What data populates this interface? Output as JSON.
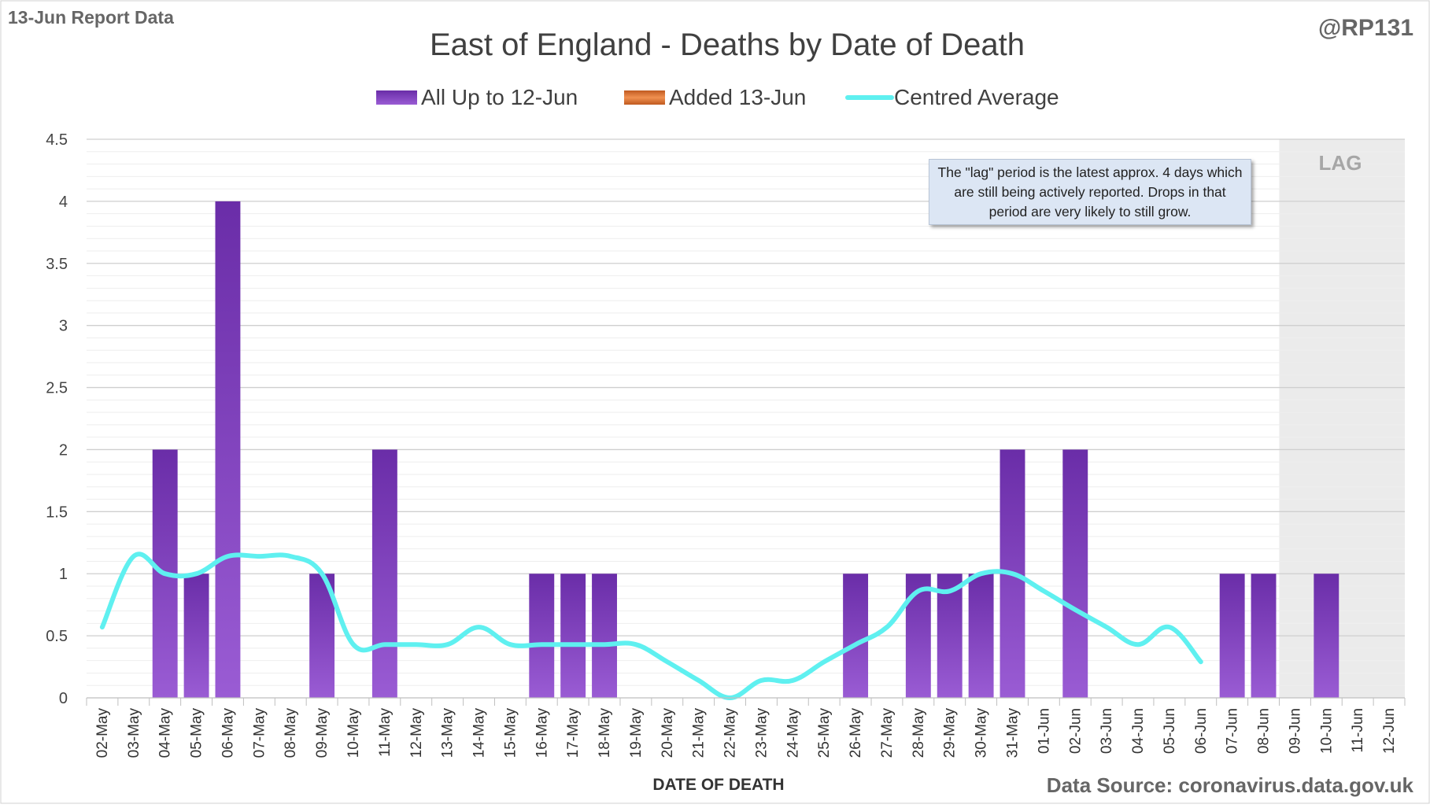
{
  "header": {
    "report_label": "13-Jun Report Data",
    "author": "@RP131",
    "source": "Data Source: coronavirus.data.gov.uk"
  },
  "note": "The \"lag\" period is the latest approx. 4 days which are still being actively reported. Drops in that period are very likely to still grow.",
  "lag_label": "LAG",
  "colors": {
    "bar_top": "#6a2da8",
    "bar_bottom": "#9a5cd4",
    "added": "#e07030",
    "average": "#5ff0f0",
    "lag_shade": "#ebebeb",
    "grid": "#d9d9d9"
  },
  "chart_data": {
    "type": "bar",
    "title": "East of England - Deaths by Date of Death",
    "xlabel": "DATE OF DEATH",
    "ylabel": "",
    "ylim": [
      0,
      4.5
    ],
    "yticks": [
      "0",
      "0.5",
      "1",
      "1.5",
      "2",
      "2.5",
      "3",
      "3.5",
      "4",
      "4.5"
    ],
    "categories": [
      "02-May",
      "03-May",
      "04-May",
      "05-May",
      "06-May",
      "07-May",
      "08-May",
      "09-May",
      "10-May",
      "11-May",
      "12-May",
      "13-May",
      "14-May",
      "15-May",
      "16-May",
      "17-May",
      "18-May",
      "19-May",
      "20-May",
      "21-May",
      "22-May",
      "23-May",
      "24-May",
      "25-May",
      "26-May",
      "27-May",
      "28-May",
      "29-May",
      "30-May",
      "31-May",
      "01-Jun",
      "02-Jun",
      "03-Jun",
      "04-Jun",
      "05-Jun",
      "06-Jun",
      "07-Jun",
      "08-Jun",
      "09-Jun",
      "10-Jun",
      "11-Jun",
      "12-Jun"
    ],
    "series": [
      {
        "name": "All Up to 12-Jun",
        "type": "bar",
        "values": [
          0,
          0,
          2,
          1,
          4,
          0,
          0,
          1,
          0,
          2,
          0,
          0,
          0,
          0,
          1,
          1,
          1,
          0,
          0,
          0,
          0,
          0,
          0,
          0,
          1,
          0,
          1,
          1,
          1,
          2,
          0,
          2,
          0,
          0,
          0,
          0,
          1,
          1,
          0,
          1,
          0,
          0
        ]
      },
      {
        "name": "Added 13-Jun",
        "type": "bar",
        "values": [
          0,
          0,
          0,
          0,
          0,
          0,
          0,
          0,
          0,
          0,
          0,
          0,
          0,
          0,
          0,
          0,
          0,
          0,
          0,
          0,
          0,
          0,
          0,
          0,
          0,
          0,
          0,
          0,
          0,
          0,
          0,
          0,
          0,
          0,
          0,
          0,
          0,
          0,
          0,
          0,
          0,
          0
        ]
      },
      {
        "name": "Centred Average",
        "type": "line",
        "values": [
          0.57,
          1.14,
          1.0,
          1.0,
          1.14,
          1.14,
          1.14,
          1.0,
          0.43,
          0.43,
          0.43,
          0.43,
          0.57,
          0.43,
          0.43,
          0.43,
          0.43,
          0.43,
          0.29,
          0.14,
          0.0,
          0.14,
          0.14,
          0.29,
          0.43,
          0.57,
          0.86,
          0.86,
          1.0,
          1.0,
          0.86,
          0.71,
          0.57,
          0.43,
          0.57,
          0.29,
          null,
          null,
          null,
          null,
          null,
          null
        ]
      }
    ],
    "lag_categories": [
      "09-Jun",
      "10-Jun",
      "11-Jun",
      "12-Jun"
    ],
    "legend_position": "top"
  }
}
